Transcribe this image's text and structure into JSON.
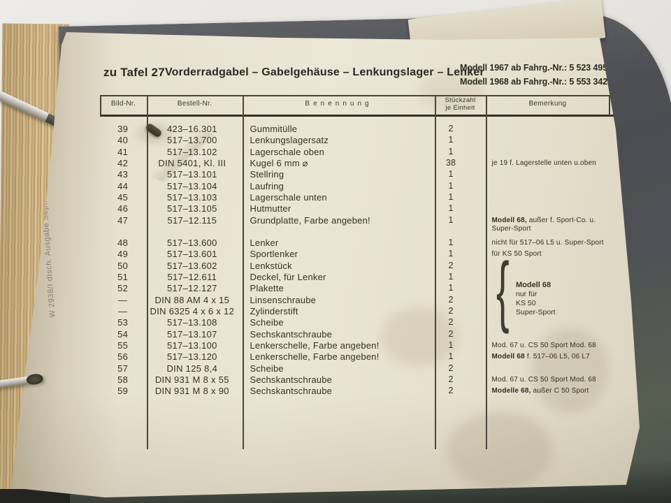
{
  "page": {
    "edition_note": "W 2938/I dtsch. Ausgabe Sept. 67",
    "title_prefix": "zu Tafel 27",
    "title": "Vorderradgabel – Gabelgehäuse – Lenkungslager – Lenker",
    "model_lines": [
      "Modell 1967 ab Fahrg.-Nr.: 5 523 495",
      "Modell 1968 ab Fahrg.-Nr.: 5 553 342"
    ]
  },
  "table": {
    "headers": {
      "bild": "Bild-Nr.",
      "bestell": "Bestell-Nr.",
      "benennung": "Benennung",
      "stueckzahl_line1": "Stückzahl",
      "stueckzahl_line2": "je Einheit",
      "bemerkung": "Bemerkung"
    },
    "rows": [
      {
        "bild": "39",
        "bestell": "423–16.301",
        "name": "Gummitülle",
        "qty": "2"
      },
      {
        "bild": "40",
        "bestell": "517–13.700",
        "name": "Lenkungslagersatz",
        "qty": "1"
      },
      {
        "bild": "41",
        "bestell": "517–13.102",
        "name": "Lagerschale oben",
        "qty": "1"
      },
      {
        "bild": "42",
        "bestell": "DIN 5401, Kl. III",
        "name": "Kugel 6 mm ⌀",
        "qty": "38",
        "remark": "je 19 f. Lagerstelle unten u.oben"
      },
      {
        "bild": "43",
        "bestell": "517–13.101",
        "name": "Stellring",
        "qty": "1"
      },
      {
        "bild": "44",
        "bestell": "517–13.104",
        "name": "Laufring",
        "qty": "1"
      },
      {
        "bild": "45",
        "bestell": "517–13.103",
        "name": "Lagerschale unten",
        "qty": "1"
      },
      {
        "bild": "46",
        "bestell": "517–13.105",
        "name": "Hutmutter",
        "qty": "1"
      },
      {
        "bild": "47",
        "bestell": "517–12.115",
        "name": "Grundplatte, Farbe angeben!",
        "qty": "1",
        "remark_bold": "Modell 68,",
        "remark": " außer f. Sport-Co. u.\nSuper-Sport"
      },
      {
        "bild": "48",
        "bestell": "517–13.600",
        "name": "Lenker",
        "qty": "1",
        "gap_before": true,
        "remark": "nicht für 517–06 L5 u. Super-Sport"
      },
      {
        "bild": "49",
        "bestell": "517–13.601",
        "name": "Sportlenker",
        "qty": "1",
        "remark": "für KS 50 Sport"
      },
      {
        "bild": "50",
        "bestell": "517–13.602",
        "name": "Lenkstück",
        "qty": "2"
      },
      {
        "bild": "51",
        "bestell": "517–12.611",
        "name": "Deckel, für Lenker",
        "qty": "1"
      },
      {
        "bild": "52",
        "bestell": "517–12.127",
        "name": "Plakette",
        "qty": "1"
      },
      {
        "bild": "—",
        "bestell": "DIN 88 AM 4 x 15",
        "name": "Linsenschraube",
        "qty": "2"
      },
      {
        "bild": "—",
        "bestell": "DIN 6325 4 x 6 x 12",
        "name": "Zylinderstift",
        "qty": "2"
      },
      {
        "bild": "53",
        "bestell": "517–13.108",
        "name": "Scheibe",
        "qty": "2"
      },
      {
        "bild": "54",
        "bestell": "517–13.107",
        "name": "Sechskantschraube",
        "qty": "2"
      },
      {
        "bild": "55",
        "bestell": "517–13.100",
        "name": "Lenkerschelle, Farbe angeben!",
        "qty": "1",
        "remark": "Mod. 67 u. CS 50 Sport Mod. 68"
      },
      {
        "bild": "56",
        "bestell": "517–13.120",
        "name": "Lenkerschelle, Farbe angeben!",
        "qty": "1",
        "remark_bold": "Modell 68",
        "remark": " f. 517–06 L5, 06 L7"
      },
      {
        "bild": "57",
        "bestell": "DIN 125 8,4",
        "name": "Scheibe",
        "qty": "2"
      },
      {
        "bild": "58",
        "bestell": "DIN 931 M 8 x 55",
        "name": "Sechskantschraube",
        "qty": "2",
        "remark": "Mod. 67 u. CS 50 Sport Mod. 68"
      },
      {
        "bild": "59",
        "bestell": "DIN 931 M 8 x 90",
        "name": "Sechskantschraube",
        "qty": "2",
        "remark_bold": "Modelle 68,",
        "remark": " außer C 50 Sport"
      }
    ],
    "group_remark": {
      "brace_glyph": "{",
      "title": "Modell 68",
      "lines": [
        "nur für",
        "KS 50",
        "Super-Sport"
      ]
    }
  }
}
